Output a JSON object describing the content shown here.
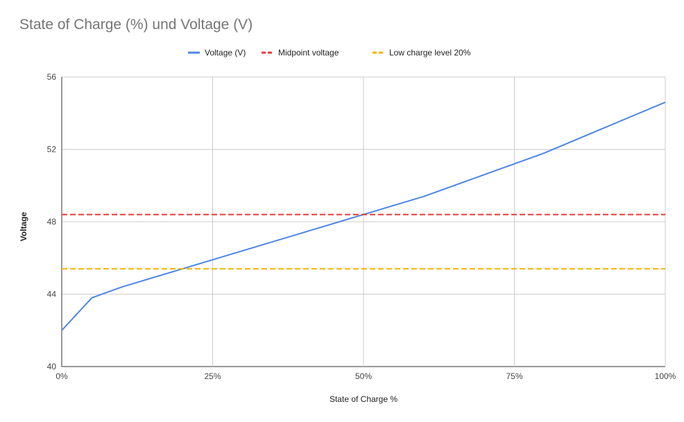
{
  "chart_data": {
    "type": "line",
    "title": "State of Charge (%) und Voltage (V)",
    "xlabel": "State of Charge %",
    "ylabel": "Voltage",
    "xlim": [
      0,
      100
    ],
    "ylim": [
      40,
      56
    ],
    "x_ticks": [
      0,
      25,
      50,
      75,
      100
    ],
    "x_tick_labels": [
      "0%",
      "25%",
      "50%",
      "75%",
      "100%"
    ],
    "y_ticks": [
      40,
      44,
      48,
      52,
      56
    ],
    "y_tick_labels": [
      "40",
      "44",
      "48",
      "52",
      "56"
    ],
    "grid": true,
    "legend_position": "top",
    "series": [
      {
        "name": "Voltage (V)",
        "style": "solid",
        "color": "#4a86e8",
        "x": [
          0,
          5,
          10,
          20,
          30,
          40,
          50,
          60,
          70,
          80,
          90,
          100
        ],
        "y": [
          42.0,
          43.8,
          44.4,
          45.4,
          46.4,
          47.4,
          48.4,
          49.4,
          50.6,
          51.8,
          53.2,
          54.6
        ]
      },
      {
        "name": "Midpoint voltage",
        "style": "dashed",
        "color": "#e53935",
        "x": [
          0,
          100
        ],
        "y": [
          48.4,
          48.4
        ]
      },
      {
        "name": "Low charge level 20%",
        "style": "dashed",
        "color": "#f4b400",
        "x": [
          0,
          100
        ],
        "y": [
          45.4,
          45.4
        ]
      }
    ]
  }
}
